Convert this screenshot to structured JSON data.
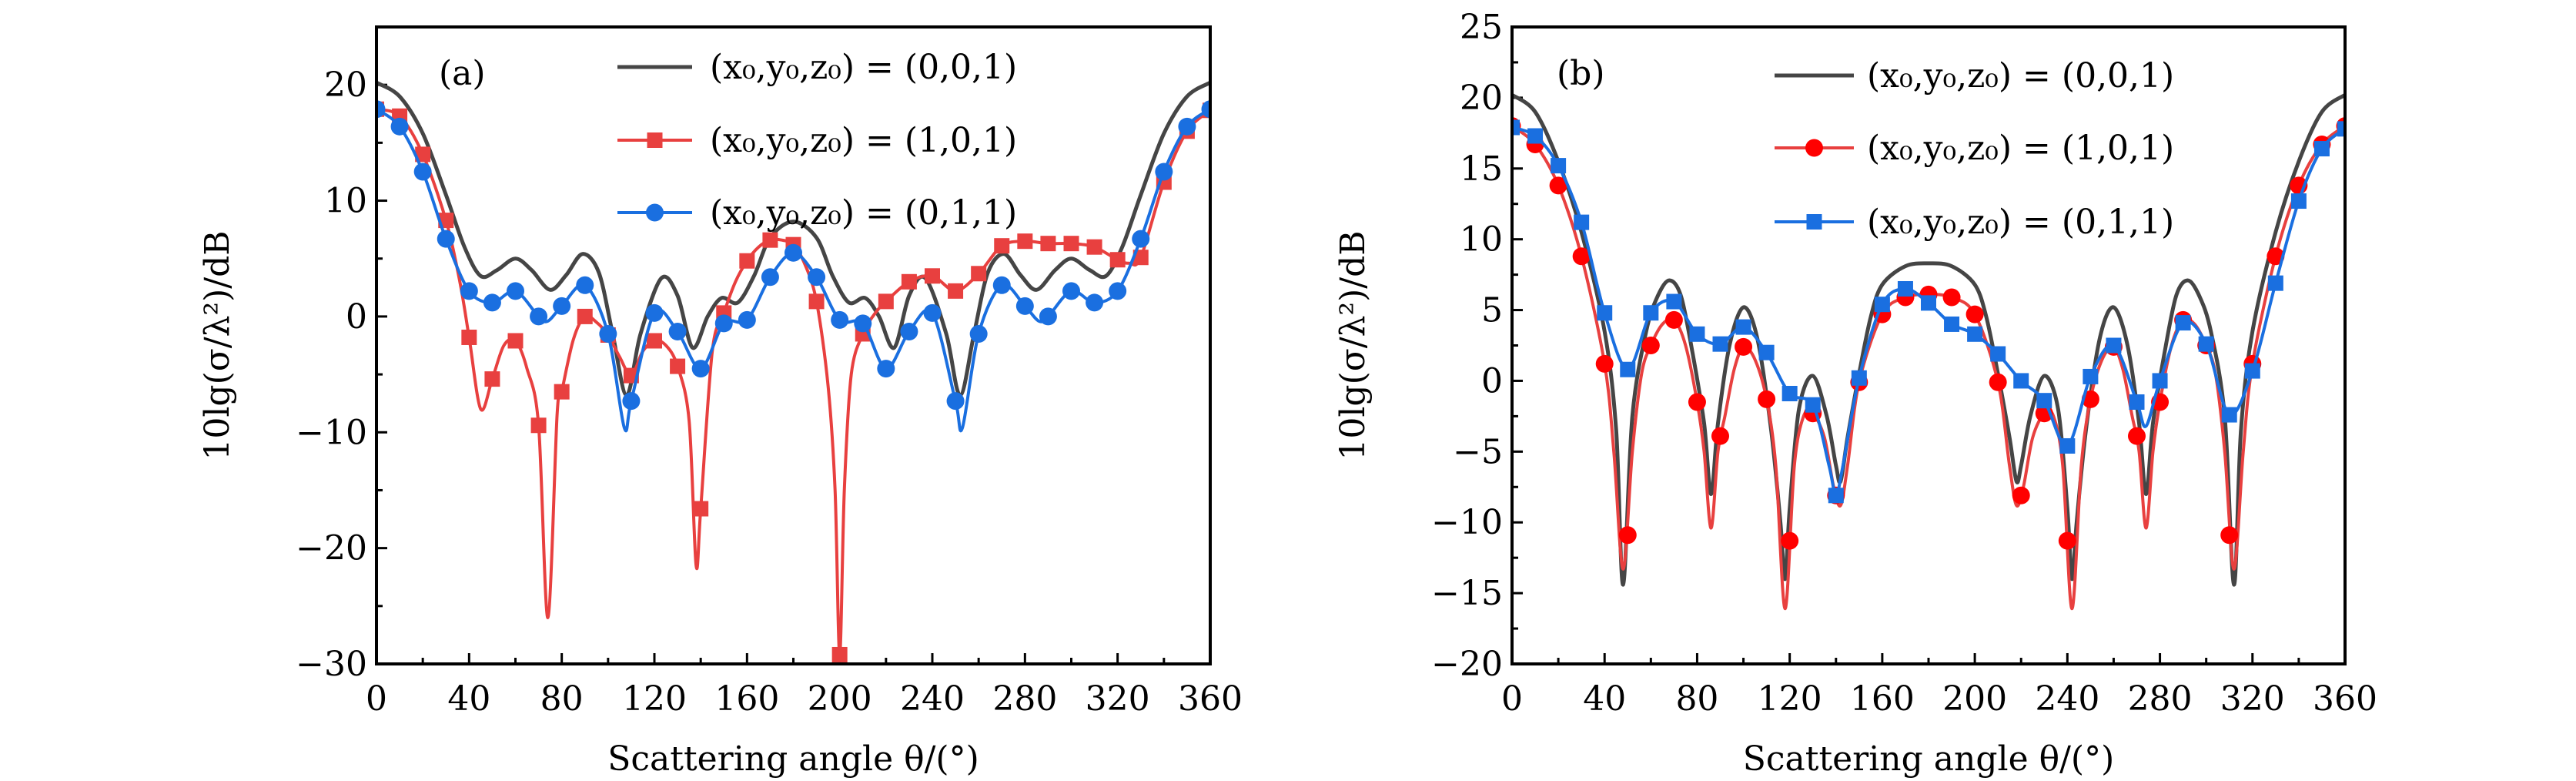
{
  "chart_data": [
    {
      "type": "line",
      "panel_label": "(a)",
      "xlabel": "Scattering angle θ/(°)",
      "ylabel": "10lg(σ/λ²)/dB",
      "xlim": [
        0,
        360
      ],
      "ylim": [
        -30,
        25
      ],
      "xticks": [
        0,
        40,
        80,
        120,
        160,
        200,
        240,
        280,
        320,
        360
      ],
      "xtick_labels": [
        "0",
        "40",
        "80",
        "120",
        "160",
        "200",
        "240",
        "280",
        "320",
        "360"
      ],
      "yticks": [
        -30,
        -20,
        -10,
        0,
        10,
        20
      ],
      "ytick_labels": [
        "−30",
        "−20",
        "−10",
        "0",
        "10",
        "20"
      ],
      "legend_position": "top-center",
      "grid": false,
      "series": [
        {
          "name": "(x₀,y₀,z₀) = (0,0,1)",
          "color": "#454545",
          "marker": "none",
          "x": [
            0,
            10,
            20,
            30,
            38,
            45,
            52,
            60,
            67,
            75,
            82,
            89,
            96,
            102,
            108,
            114,
            123,
            130,
            136.5,
            143,
            149,
            156,
            163,
            170,
            180,
            190,
            197,
            204,
            211,
            217,
            223.5,
            230,
            237,
            246,
            252,
            258,
            264,
            271,
            278,
            285,
            293,
            300,
            308,
            315,
            322,
            330,
            340,
            350,
            360
          ],
          "y": [
            20.2,
            19.0,
            15.8,
            10.5,
            6.0,
            3.5,
            4.0,
            5.0,
            4.0,
            2.3,
            3.6,
            5.4,
            3.8,
            -1.5,
            -6.8,
            -1.5,
            3.3,
            1.8,
            -2.7,
            0.0,
            1.6,
            1.2,
            3.5,
            6.8,
            8.2,
            6.8,
            3.5,
            1.2,
            1.6,
            0.0,
            -2.7,
            1.8,
            3.3,
            -1.5,
            -6.8,
            -1.5,
            3.8,
            5.4,
            3.6,
            2.3,
            4.0,
            5.0,
            4.0,
            3.5,
            6.0,
            10.5,
            15.8,
            19.0,
            20.2
          ]
        },
        {
          "name": "(x₀,y₀,z₀) = (1,0,1)",
          "color": "#e8403f",
          "marker": "square",
          "marker_x": [
            0,
            10,
            20,
            30,
            40,
            50,
            60,
            70,
            80,
            90,
            100,
            110,
            120,
            130,
            140,
            150,
            160,
            170,
            180,
            190,
            200,
            210,
            220,
            230,
            240,
            250,
            260,
            270,
            280,
            290,
            300,
            310,
            320,
            330,
            340,
            350,
            360
          ],
          "marker_y": [
            17.9,
            17.3,
            14.0,
            8.3,
            -1.8,
            -5.4,
            -2.1,
            -9.4,
            -6.5,
            0.0,
            -1.6,
            -5.1,
            -2.1,
            -4.3,
            -16.6,
            0.3,
            4.8,
            6.6,
            6.2,
            1.3,
            -29.2,
            -1.5,
            1.3,
            3.0,
            3.5,
            2.2,
            3.7,
            6.1,
            6.5,
            6.3,
            6.3,
            6.0,
            4.9,
            5.1,
            11.6,
            16.0,
            17.8
          ],
          "x": [
            0,
            10,
            20,
            30,
            36,
            40,
            45,
            50,
            55,
            60,
            65,
            70,
            74,
            78,
            80,
            85,
            90,
            95,
            100,
            105,
            110,
            115,
            120,
            125,
            130,
            135,
            138,
            140,
            145,
            150,
            155,
            160,
            165,
            170,
            175,
            180,
            185,
            190,
            195,
            198,
            200,
            202,
            205,
            210,
            215,
            220,
            230,
            240,
            250,
            260,
            270,
            280,
            290,
            300,
            310,
            320,
            325,
            330,
            340,
            350,
            360
          ],
          "y": [
            17.9,
            17.3,
            14.0,
            8.3,
            3.0,
            -1.8,
            -8.0,
            -5.4,
            -2.5,
            -2.1,
            -4.5,
            -9.4,
            -26.0,
            -8.5,
            -6.5,
            -2.0,
            0.0,
            -0.5,
            -1.6,
            -3.5,
            -5.1,
            -3.0,
            -2.1,
            -2.5,
            -4.3,
            -9.0,
            -21.5,
            -16.6,
            -3.0,
            0.3,
            3.0,
            4.8,
            6.0,
            6.6,
            6.6,
            6.2,
            4.5,
            1.3,
            -6.0,
            -15.0,
            -29.2,
            -15.0,
            -5.0,
            -1.5,
            0.2,
            1.3,
            3.0,
            3.5,
            2.2,
            3.7,
            6.1,
            6.5,
            6.3,
            6.3,
            6.0,
            4.9,
            4.6,
            5.1,
            11.6,
            16.0,
            17.8
          ]
        },
        {
          "name": "(x₀,y₀,z₀) = (0,1,1)",
          "color": "#1a6fe0",
          "marker": "circle",
          "marker_x": [
            0,
            10,
            20,
            30,
            40,
            50,
            60,
            70,
            80,
            90,
            100,
            110,
            120,
            130,
            140,
            150,
            160,
            170,
            180,
            190,
            200,
            210,
            220,
            230,
            240,
            250,
            260,
            270,
            280,
            290,
            300,
            310,
            320,
            330,
            340,
            350,
            360
          ],
          "marker_y": [
            17.9,
            16.4,
            12.5,
            6.7,
            2.2,
            1.2,
            2.2,
            0.0,
            0.9,
            2.7,
            -1.5,
            -7.3,
            0.3,
            -1.3,
            -4.5,
            -0.6,
            -0.3,
            3.4,
            5.5,
            3.4,
            -0.3,
            -0.6,
            -4.5,
            -1.3,
            0.3,
            -7.3,
            -1.5,
            2.7,
            0.9,
            0.0,
            2.2,
            1.2,
            2.2,
            6.7,
            12.5,
            16.4,
            17.9
          ],
          "x": [
            0,
            10,
            20,
            30,
            40,
            50,
            60,
            70,
            74,
            80,
            90,
            100,
            107,
            110,
            120,
            130,
            140,
            150,
            160,
            170,
            180,
            190,
            200,
            210,
            220,
            230,
            240,
            250,
            253,
            260,
            270,
            280,
            286,
            290,
            300,
            310,
            320,
            330,
            340,
            350,
            360
          ],
          "y": [
            17.9,
            16.4,
            12.5,
            6.7,
            2.2,
            1.2,
            2.2,
            0.0,
            -0.4,
            0.9,
            2.7,
            -1.5,
            -9.6,
            -7.3,
            0.3,
            -1.3,
            -4.5,
            -0.6,
            -0.3,
            3.4,
            5.5,
            3.4,
            -0.3,
            -0.6,
            -4.5,
            -1.3,
            0.3,
            -7.3,
            -9.6,
            -1.5,
            2.7,
            0.9,
            -0.4,
            0.0,
            2.2,
            1.2,
            2.2,
            6.7,
            12.5,
            16.4,
            17.9
          ]
        }
      ]
    },
    {
      "type": "line",
      "panel_label": "(b)",
      "xlabel": "Scattering angle θ/(°)",
      "ylabel": "10lg(σ/λ²)/dB",
      "xlim": [
        0,
        360
      ],
      "ylim": [
        -20,
        25
      ],
      "xticks": [
        0,
        40,
        80,
        120,
        160,
        200,
        240,
        280,
        320,
        360
      ],
      "xtick_labels": [
        "0",
        "40",
        "80",
        "120",
        "160",
        "200",
        "240",
        "280",
        "320",
        "360"
      ],
      "yticks": [
        -20,
        -15,
        -10,
        -5,
        0,
        5,
        10,
        15,
        20,
        25
      ],
      "ytick_labels": [
        "−20",
        "−15",
        "−10",
        "−5",
        "0",
        "5",
        "10",
        "15",
        "20",
        "25"
      ],
      "legend_position": "top-center",
      "grid": false,
      "series": [
        {
          "name": "(x₀,y₀,z₀) = (0,0,1)",
          "color": "#454545",
          "marker": "none",
          "x": [
            0,
            10,
            20,
            30,
            40,
            45,
            48,
            52,
            58,
            63,
            68,
            73,
            78,
            83,
            86,
            89,
            94,
            100,
            106,
            112,
            116,
            118,
            120,
            124,
            130,
            136,
            140,
            142,
            145,
            150,
            155,
            160,
            170,
            180,
            190,
            200,
            205,
            210,
            215,
            218,
            220,
            224,
            230,
            236,
            240,
            242,
            244,
            248,
            254,
            260,
            266,
            271,
            274,
            277,
            282,
            287,
            292,
            297,
            302,
            308,
            312,
            315,
            320,
            330,
            340,
            350,
            360
          ],
          "y": [
            20.2,
            19.0,
            15.5,
            10.5,
            3.5,
            -3.5,
            -14.4,
            -2.5,
            3.5,
            6.0,
            7.1,
            6.0,
            2.0,
            -3.0,
            -8.0,
            -3.0,
            2.5,
            5.2,
            3.0,
            -3.5,
            -10.0,
            -14.0,
            -9.0,
            -2.0,
            0.35,
            -2.5,
            -6.0,
            -7.1,
            -4.0,
            0.5,
            4.5,
            6.8,
            8.1,
            8.3,
            8.1,
            6.8,
            4.5,
            0.5,
            -4.0,
            -7.1,
            -6.0,
            -2.5,
            0.35,
            -2.0,
            -9.0,
            -14.0,
            -10.0,
            -3.5,
            3.0,
            5.2,
            2.5,
            -3.0,
            -8.0,
            -3.0,
            2.0,
            6.0,
            7.1,
            6.0,
            3.5,
            -2.5,
            -14.4,
            -3.5,
            3.5,
            10.5,
            15.5,
            19.0,
            20.2
          ]
        },
        {
          "name": "(x₀,y₀,z₀) = (1,0,1)",
          "color": "#e8403f",
          "marker_color": "#ff0000",
          "marker": "circle",
          "marker_x": [
            0,
            10,
            20,
            30,
            40,
            50,
            60,
            70,
            80,
            90,
            100,
            110,
            120,
            130,
            140,
            150,
            160,
            170,
            180,
            190,
            200,
            210,
            220,
            230,
            240,
            250,
            260,
            270,
            280,
            290,
            300,
            310,
            320,
            330,
            340,
            350,
            360
          ],
          "marker_y": [
            18.0,
            16.7,
            13.8,
            8.8,
            1.2,
            -10.9,
            2.5,
            4.3,
            -1.5,
            -3.9,
            2.4,
            -1.3,
            -11.3,
            -2.3,
            -8.1,
            -0.1,
            4.7,
            5.9,
            6.1,
            5.9,
            4.7,
            -0.1,
            -8.1,
            -2.3,
            -11.3,
            -1.3,
            2.4,
            -3.9,
            -1.5,
            4.3,
            2.5,
            -10.9,
            1.2,
            8.8,
            13.8,
            16.7,
            18.0
          ],
          "x": [
            0,
            10,
            20,
            30,
            40,
            44,
            48,
            52,
            56,
            60,
            65,
            70,
            75,
            80,
            83,
            86,
            89,
            92,
            96,
            100,
            105,
            110,
            114,
            118,
            122,
            126,
            130,
            135,
            139,
            142,
            145,
            150,
            160,
            170,
            180,
            190,
            200,
            210,
            215,
            218,
            221,
            225,
            230,
            234,
            238,
            242,
            246,
            250,
            255,
            260,
            264,
            268,
            271,
            274,
            277,
            280,
            285,
            290,
            295,
            300,
            304,
            308,
            312,
            316,
            320,
            330,
            340,
            350,
            360
          ],
          "y": [
            18.0,
            16.7,
            13.8,
            8.8,
            1.2,
            -5.0,
            -13.3,
            -5.0,
            0.5,
            2.5,
            4.0,
            4.3,
            2.5,
            -1.5,
            -5.0,
            -10.4,
            -5.0,
            -2.5,
            0.8,
            2.4,
            1.5,
            -1.3,
            -6.0,
            -16.1,
            -6.0,
            -2.5,
            -2.3,
            -4.0,
            -7.5,
            -8.8,
            -6.0,
            -0.1,
            4.7,
            5.9,
            6.1,
            5.9,
            4.7,
            -0.1,
            -6.0,
            -8.8,
            -7.5,
            -4.0,
            -2.3,
            -2.5,
            -6.0,
            -16.1,
            -6.0,
            -1.3,
            1.5,
            2.4,
            0.8,
            -2.5,
            -5.0,
            -10.4,
            -5.0,
            -1.5,
            2.5,
            4.3,
            4.0,
            2.5,
            0.5,
            -5.0,
            -13.3,
            -5.0,
            1.2,
            8.8,
            13.8,
            16.7,
            18.0
          ]
        },
        {
          "name": "(x₀,y₀,z₀) = (0,1,1)",
          "color": "#1a6fe0",
          "marker": "square",
          "marker_x": [
            0,
            10,
            20,
            30,
            40,
            50,
            60,
            70,
            80,
            90,
            100,
            110,
            120,
            130,
            140,
            150,
            160,
            170,
            180,
            190,
            200,
            210,
            220,
            230,
            240,
            250,
            260,
            270,
            280,
            290,
            300,
            310,
            320,
            330,
            340,
            350,
            360
          ],
          "marker_y": [
            17.9,
            17.3,
            15.2,
            11.2,
            4.8,
            0.8,
            4.8,
            5.6,
            3.3,
            2.6,
            3.8,
            2.0,
            -0.9,
            -1.7,
            -8.1,
            0.2,
            5.4,
            6.5,
            5.5,
            4.0,
            3.3,
            1.9,
            0.0,
            -1.4,
            -4.6,
            0.3,
            2.5,
            -1.5,
            0.0,
            4.1,
            2.6,
            -2.4,
            0.7,
            6.9,
            12.7,
            16.4,
            17.8
          ],
          "x": [
            0,
            10,
            20,
            30,
            40,
            50,
            60,
            70,
            80,
            90,
            100,
            110,
            120,
            130,
            137,
            140,
            143,
            150,
            160,
            170,
            180,
            190,
            200,
            210,
            220,
            230,
            240,
            250,
            260,
            270,
            274,
            280,
            290,
            300,
            310,
            320,
            330,
            340,
            350,
            360
          ],
          "y": [
            17.9,
            17.3,
            15.2,
            11.2,
            4.8,
            0.8,
            4.8,
            5.6,
            3.3,
            2.6,
            3.8,
            2.0,
            -0.9,
            -1.7,
            -6.0,
            -8.1,
            -6.0,
            0.2,
            5.4,
            6.5,
            5.5,
            4.0,
            3.3,
            1.9,
            0.0,
            -1.4,
            -4.6,
            0.3,
            2.5,
            -1.5,
            -3.2,
            0.0,
            4.1,
            2.6,
            -2.4,
            0.7,
            6.9,
            12.7,
            16.4,
            17.8
          ]
        }
      ]
    }
  ]
}
